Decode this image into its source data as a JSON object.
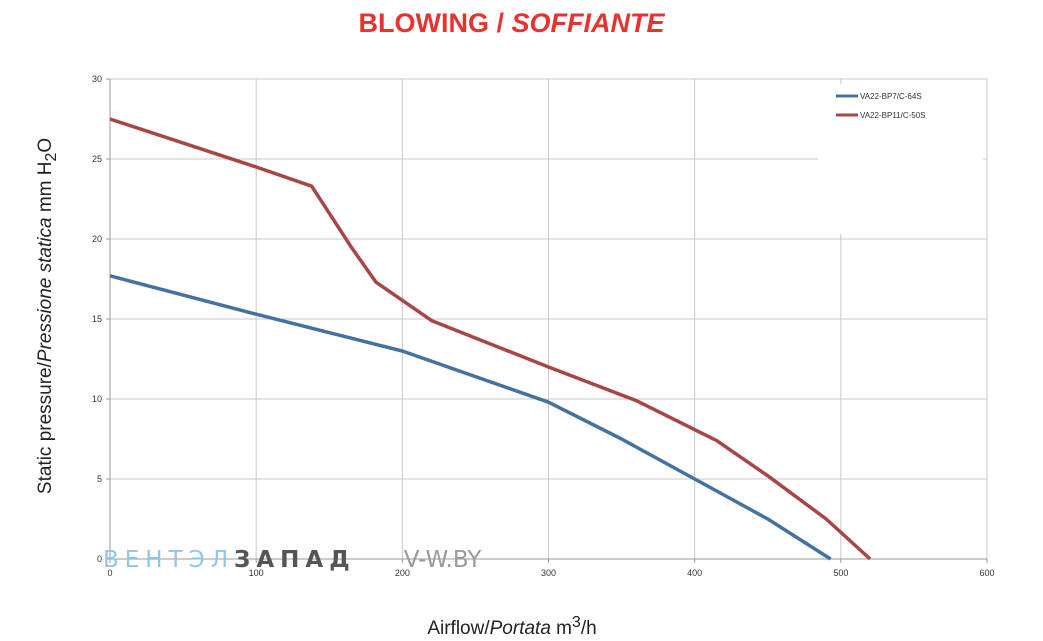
{
  "title": {
    "part1": "BLOWING / ",
    "part2": "SOFFIANTE"
  },
  "axis_labels": {
    "y_part1": "Static pressure/",
    "y_part2": "Pressione statica",
    "y_part3": " mm H",
    "y_sub": "2",
    "y_part4": "O",
    "x_part1": "Airflow/",
    "x_part2": "Portata",
    "x_part3": " m",
    "x_sup": "3",
    "x_part4": "/h"
  },
  "watermark": {
    "part1": "ВЕНТЭЛ",
    "part2": "ЗАПАД",
    "site": "V-W.BY"
  },
  "colors": {
    "title": "#e8322f",
    "series1": "#4472a0",
    "series2": "#a84545",
    "grid": "#c8c8c8"
  },
  "chart_data": {
    "type": "line",
    "title": "BLOWING / SOFFIANTE",
    "xlabel": "Airflow/Portata m3/h",
    "ylabel": "Static pressure/Pressione statica mm H2O",
    "xlim": [
      0,
      600
    ],
    "ylim": [
      0,
      30
    ],
    "x_ticks": [
      0,
      100,
      200,
      300,
      400,
      500,
      600
    ],
    "y_ticks": [
      0,
      5,
      10,
      15,
      20,
      25,
      30
    ],
    "grid": true,
    "legend_position": "top-right",
    "series": [
      {
        "name": "VA22-BP7/C-64S",
        "points": [
          [
            0,
            17.7
          ],
          [
            100,
            15.3
          ],
          [
            200,
            13.0
          ],
          [
            300,
            9.8
          ],
          [
            350,
            7.5
          ],
          [
            400,
            5.0
          ],
          [
            450,
            2.5
          ],
          [
            493,
            0
          ]
        ]
      },
      {
        "name": "VA22-BP11/C-50S",
        "points": [
          [
            0,
            27.5
          ],
          [
            100,
            24.5
          ],
          [
            138,
            23.3
          ],
          [
            165,
            19.5
          ],
          [
            182,
            17.3
          ],
          [
            220,
            14.9
          ],
          [
            300,
            12.0
          ],
          [
            360,
            9.9
          ],
          [
            415,
            7.4
          ],
          [
            450,
            5.2
          ],
          [
            490,
            2.5
          ],
          [
            520,
            0
          ]
        ]
      }
    ]
  }
}
